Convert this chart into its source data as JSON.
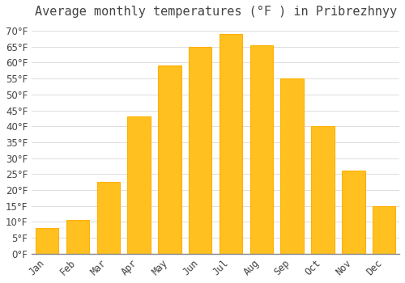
{
  "title": "Average monthly temperatures (°F ) in Pribrezhnyy",
  "months": [
    "Jan",
    "Feb",
    "Mar",
    "Apr",
    "May",
    "Jun",
    "Jul",
    "Aug",
    "Sep",
    "Oct",
    "Nov",
    "Dec"
  ],
  "values": [
    8,
    10.5,
    22.5,
    43,
    59,
    65,
    69,
    65.5,
    55,
    40,
    26,
    15
  ],
  "bar_color": "#FFC020",
  "bar_edge_color": "#FFB000",
  "background_color": "#FFFFFF",
  "grid_color": "#DDDDDD",
  "ylim": [
    0,
    72
  ],
  "yticks": [
    0,
    5,
    10,
    15,
    20,
    25,
    30,
    35,
    40,
    45,
    50,
    55,
    60,
    65,
    70
  ],
  "title_fontsize": 11,
  "tick_fontsize": 8.5,
  "font_color": "#444444"
}
